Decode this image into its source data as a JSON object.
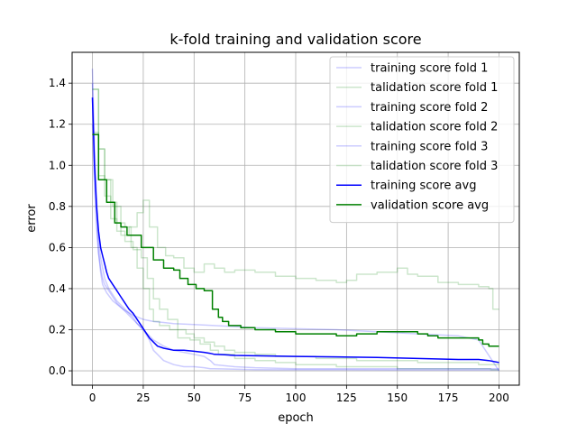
{
  "chart_data": {
    "type": "line",
    "title": "k-fold training and validation score",
    "xlabel": "epoch",
    "ylabel": "error",
    "xlim": [
      -10,
      210
    ],
    "ylim": [
      -0.07,
      1.55
    ],
    "xticks": [
      0,
      25,
      50,
      75,
      100,
      125,
      150,
      175,
      200
    ],
    "yticks": [
      0.0,
      0.2,
      0.4,
      0.6,
      0.8,
      1.0,
      1.2,
      1.4
    ],
    "ytick_labels": [
      "0.0",
      "0.2",
      "0.4",
      "0.6",
      "0.8",
      "1.0",
      "1.2",
      "1.4"
    ],
    "grid": true,
    "legend_position": "top-right",
    "series": [
      {
        "name": "training score fold 1",
        "color": "#0000ff",
        "alpha": 0.2,
        "step": false,
        "x": [
          0,
          1,
          2,
          3,
          4,
          5,
          6,
          8,
          10,
          12,
          15,
          18,
          20,
          22,
          25,
          28,
          30,
          35,
          40,
          45,
          50,
          55,
          58,
          60,
          70,
          80,
          100,
          120,
          150,
          175,
          200
        ],
        "y": [
          1.47,
          1.1,
          0.85,
          0.65,
          0.55,
          0.5,
          0.45,
          0.4,
          0.37,
          0.34,
          0.31,
          0.28,
          0.26,
          0.23,
          0.2,
          0.15,
          0.1,
          0.05,
          0.03,
          0.02,
          0.02,
          0.015,
          0.01,
          0.01,
          0.008,
          0.006,
          0.005,
          0.005,
          0.004,
          0.004,
          0.004
        ]
      },
      {
        "name": "talidation score fold 1",
        "color": "#008000",
        "alpha": 0.2,
        "step": true,
        "x": [
          0,
          3,
          6,
          9,
          12,
          16,
          19,
          22,
          25,
          28,
          30,
          33,
          38,
          42,
          48,
          53,
          58,
          62,
          70,
          80,
          90,
          100,
          110,
          120,
          130,
          140,
          150,
          160,
          170,
          180,
          190,
          196,
          200
        ],
        "y": [
          1.37,
          1.08,
          0.93,
          0.82,
          0.72,
          0.7,
          0.6,
          0.5,
          0.4,
          0.3,
          0.24,
          0.22,
          0.2,
          0.16,
          0.15,
          0.13,
          0.1,
          0.08,
          0.06,
          0.05,
          0.04,
          0.03,
          0.03,
          0.02,
          0.02,
          0.02,
          0.01,
          0.01,
          0.01,
          0.01,
          0.01,
          0.005,
          0.005
        ]
      },
      {
        "name": "training score fold 2",
        "color": "#0000ff",
        "alpha": 0.2,
        "step": false,
        "x": [
          0,
          1,
          2,
          3,
          4,
          5,
          7,
          10,
          15,
          20,
          25,
          30,
          35,
          40,
          50,
          60,
          80,
          100,
          120,
          140,
          160,
          180,
          190,
          200
        ],
        "y": [
          1.4,
          1.0,
          0.75,
          0.58,
          0.48,
          0.42,
          0.38,
          0.34,
          0.3,
          0.27,
          0.25,
          0.24,
          0.235,
          0.23,
          0.225,
          0.22,
          0.21,
          0.205,
          0.2,
          0.19,
          0.18,
          0.17,
          0.15,
          0.0
        ]
      },
      {
        "name": "talidation score fold 2",
        "color": "#008000",
        "alpha": 0.2,
        "step": true,
        "x": [
          0,
          3,
          6,
          10,
          14,
          18,
          22,
          25,
          28,
          32,
          36,
          40,
          45,
          50,
          55,
          60,
          65,
          70,
          80,
          90,
          100,
          110,
          120,
          125,
          130,
          140,
          150,
          155,
          160,
          170,
          180,
          190,
          195,
          197,
          200
        ],
        "y": [
          1.37,
          1.08,
          0.93,
          0.8,
          0.66,
          0.7,
          0.77,
          0.83,
          0.7,
          0.6,
          0.56,
          0.55,
          0.5,
          0.48,
          0.52,
          0.5,
          0.48,
          0.49,
          0.48,
          0.46,
          0.45,
          0.44,
          0.43,
          0.44,
          0.47,
          0.48,
          0.5,
          0.47,
          0.46,
          0.43,
          0.42,
          0.41,
          0.4,
          0.3,
          0.3
        ]
      },
      {
        "name": "training score fold 3",
        "color": "#0000ff",
        "alpha": 0.2,
        "step": false,
        "x": [
          0,
          1,
          2,
          3,
          4,
          5,
          6,
          8,
          10,
          12,
          15,
          18,
          20,
          22,
          25,
          28,
          30,
          35,
          40,
          45,
          50,
          55,
          58,
          60,
          70,
          80,
          100,
          120,
          150,
          175,
          200
        ],
        "y": [
          1.2,
          0.9,
          0.7,
          0.57,
          0.5,
          0.45,
          0.42,
          0.39,
          0.36,
          0.33,
          0.3,
          0.27,
          0.25,
          0.23,
          0.2,
          0.17,
          0.15,
          0.12,
          0.1,
          0.09,
          0.08,
          0.07,
          0.05,
          0.03,
          0.02,
          0.015,
          0.01,
          0.01,
          0.01,
          0.01,
          0.01
        ]
      },
      {
        "name": "talidation score fold 3",
        "color": "#008000",
        "alpha": 0.2,
        "step": true,
        "x": [
          0,
          3,
          6,
          9,
          12,
          16,
          20,
          24,
          27,
          30,
          33,
          37,
          42,
          46,
          50,
          55,
          60,
          65,
          70,
          80,
          90,
          100,
          110,
          120,
          130,
          140,
          150,
          160,
          170,
          180,
          190,
          200
        ],
        "y": [
          1.16,
          0.95,
          0.85,
          0.74,
          0.68,
          0.63,
          0.59,
          0.55,
          0.45,
          0.35,
          0.3,
          0.25,
          0.2,
          0.18,
          0.16,
          0.14,
          0.12,
          0.1,
          0.09,
          0.08,
          0.07,
          0.07,
          0.06,
          0.06,
          0.05,
          0.05,
          0.05,
          0.04,
          0.04,
          0.04,
          0.03,
          0.03
        ]
      },
      {
        "name": "training score avg",
        "color": "#0000ff",
        "alpha": 1.0,
        "step": false,
        "width": 1.5,
        "x": [
          0,
          1,
          2,
          3,
          4,
          5,
          6,
          7,
          8,
          10,
          12,
          14,
          16,
          18,
          20,
          22,
          24,
          26,
          28,
          30,
          32,
          35,
          40,
          45,
          50,
          55,
          58,
          60,
          65,
          70,
          80,
          100,
          120,
          140,
          160,
          180,
          190,
          195,
          200
        ],
        "y": [
          1.33,
          1.0,
          0.8,
          0.68,
          0.6,
          0.56,
          0.52,
          0.48,
          0.45,
          0.42,
          0.39,
          0.36,
          0.33,
          0.3,
          0.28,
          0.25,
          0.22,
          0.19,
          0.16,
          0.14,
          0.12,
          0.11,
          0.1,
          0.1,
          0.095,
          0.09,
          0.085,
          0.08,
          0.078,
          0.075,
          0.073,
          0.07,
          0.068,
          0.065,
          0.06,
          0.055,
          0.055,
          0.05,
          0.04
        ]
      },
      {
        "name": "validation score avg",
        "color": "#008000",
        "alpha": 1.0,
        "step": true,
        "width": 1.5,
        "x": [
          0,
          3,
          7,
          11,
          14,
          17,
          20,
          24,
          26,
          30,
          35,
          40,
          43,
          47,
          51,
          55,
          59,
          62,
          64,
          67,
          73,
          80,
          90,
          100,
          110,
          120,
          125,
          130,
          135,
          140,
          150,
          160,
          165,
          170,
          180,
          185,
          190,
          192,
          195,
          200
        ],
        "y": [
          1.15,
          0.93,
          0.82,
          0.72,
          0.7,
          0.66,
          0.66,
          0.6,
          0.6,
          0.54,
          0.5,
          0.49,
          0.45,
          0.42,
          0.4,
          0.39,
          0.3,
          0.26,
          0.24,
          0.22,
          0.21,
          0.2,
          0.19,
          0.18,
          0.18,
          0.17,
          0.17,
          0.18,
          0.18,
          0.19,
          0.19,
          0.18,
          0.17,
          0.16,
          0.16,
          0.16,
          0.15,
          0.13,
          0.12,
          0.12
        ]
      }
    ]
  }
}
